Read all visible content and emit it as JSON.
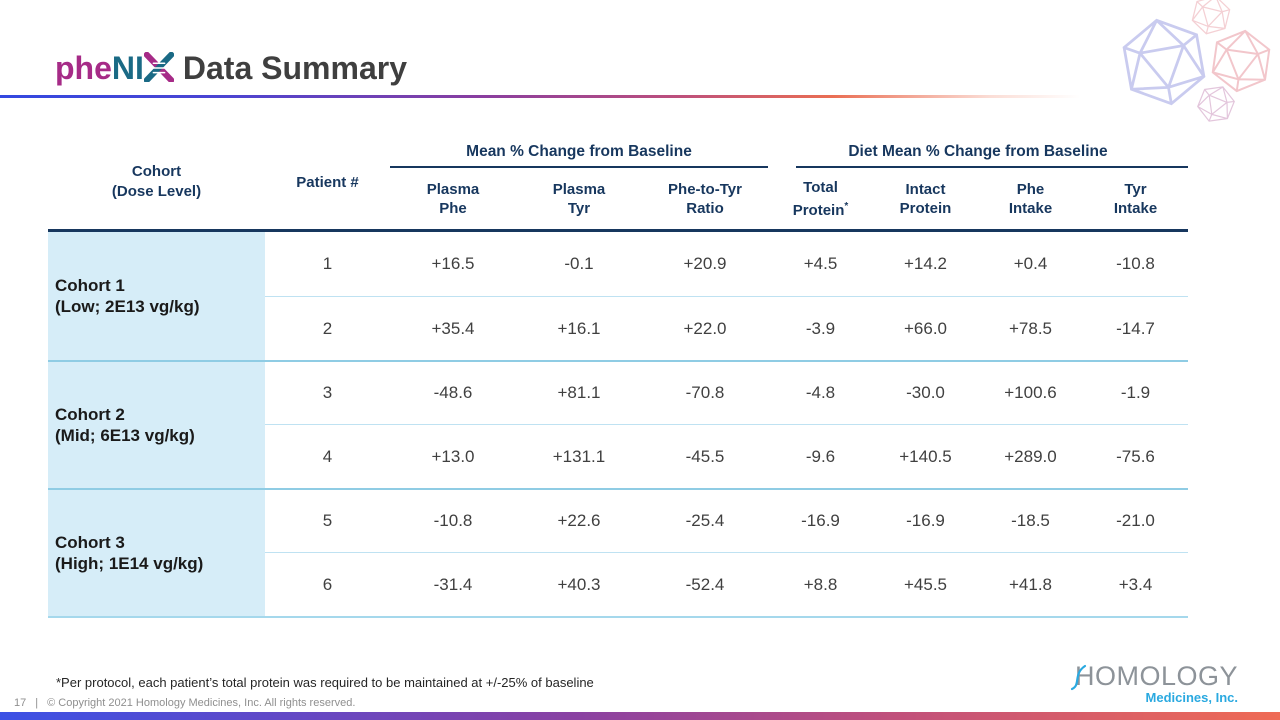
{
  "title": {
    "brand_phe": "phe",
    "brand_ni": "NI",
    "rest": "Data Summary"
  },
  "icons": {
    "dna_x": "dna-helix-x-icon",
    "decoration": "aav-capsid-wireframe-icon",
    "logo_wave": "wave-icon"
  },
  "table": {
    "cohort_header_line1": "Cohort",
    "cohort_header_line2": "(Dose Level)",
    "patient_header": "Patient #",
    "groups": {
      "mean": "Mean % Change from Baseline",
      "diet": "Diet Mean % Change from Baseline"
    },
    "columns": [
      {
        "l1": "Plasma",
        "l2": "Phe"
      },
      {
        "l1": "Plasma",
        "l2": "Tyr"
      },
      {
        "l1": "Phe-to-Tyr",
        "l2": "Ratio"
      },
      {
        "l1": "Total",
        "l2": "Protein",
        "sup": "*"
      },
      {
        "l1": "Intact",
        "l2": "Protein"
      },
      {
        "l1": "Phe",
        "l2": "Intake"
      },
      {
        "l1": "Tyr",
        "l2": "Intake"
      }
    ],
    "cohorts": [
      {
        "name": "Cohort 1",
        "dose": "(Low; 2E13 vg/kg)",
        "rows": [
          {
            "patient": "1",
            "values": [
              "+16.5",
              "-0.1",
              "+20.9",
              "+4.5",
              "+14.2",
              "+0.4",
              "-10.8"
            ]
          },
          {
            "patient": "2",
            "values": [
              "+35.4",
              "+16.1",
              "+22.0",
              "-3.9",
              "+66.0",
              "+78.5",
              "-14.7"
            ]
          }
        ]
      },
      {
        "name": "Cohort 2",
        "dose": "(Mid; 6E13 vg/kg)",
        "rows": [
          {
            "patient": "3",
            "values": [
              "-48.6",
              "+81.1",
              "-70.8",
              "-4.8",
              "-30.0",
              "+100.6",
              "-1.9"
            ]
          },
          {
            "patient": "4",
            "values": [
              "+13.0",
              "+131.1",
              "-45.5",
              "-9.6",
              "+140.5",
              "+289.0",
              "-75.6"
            ]
          }
        ]
      },
      {
        "name": "Cohort 3",
        "dose": "(High; 1E14 vg/kg)",
        "rows": [
          {
            "patient": "5",
            "values": [
              "-10.8",
              "+22.6",
              "-25.4",
              "-16.9",
              "-16.9",
              "-18.5",
              "-21.0"
            ]
          },
          {
            "patient": "6",
            "values": [
              "-31.4",
              "+40.3",
              "-52.4",
              "+8.8",
              "+45.5",
              "+41.8",
              "+3.4"
            ]
          }
        ]
      }
    ]
  },
  "footnote": "*Per protocol, each patient’s total protein was required to be maintained at +/-25% of baseline",
  "footer": {
    "page": "17",
    "separator": "|",
    "copyright": "© Copyright 2021 Homology Medicines, Inc. All rights reserved."
  },
  "logo": {
    "name": "HOMOLOGY",
    "tagline": "Medicines, Inc."
  },
  "colors": {
    "brand_magenta": "#A62B87",
    "brand_teal": "#1A6A85",
    "header_navy": "#17375E",
    "cohort_cell_bg": "#D6EDF8",
    "row_separator": "#BFE2F2",
    "cohort_separator": "#8FCCE4",
    "logo_blue": "#2AA9E0",
    "gradient_blue": "#3B51E5",
    "gradient_purple": "#8A41A2",
    "gradient_red": "#EF6B55"
  }
}
